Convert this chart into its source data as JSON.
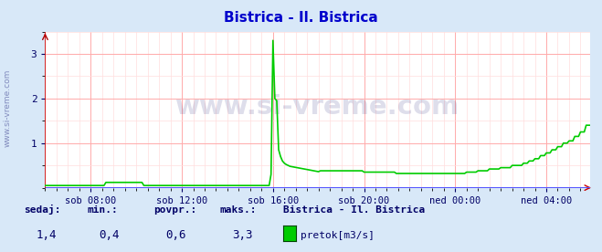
{
  "title": "Bistrica - Il. Bistrica",
  "title_color": "#0000cc",
  "bg_color": "#d8e8f8",
  "plot_bg_color": "#ffffff",
  "grid_color_major": "#ffaaaa",
  "grid_color_minor": "#ffdddd",
  "line_color": "#00cc00",
  "axis_color": "#cc0000",
  "xaxis_color": "#0000cc",
  "tick_label_color": "#000066",
  "watermark": "www.si-vreme.com",
  "watermark_color": "#000066",
  "watermark_alpha": 0.13,
  "xlabel_ticks": [
    "sob 08:00",
    "sob 12:00",
    "sob 16:00",
    "sob 20:00",
    "ned 00:00",
    "ned 04:00"
  ],
  "ylim": [
    0,
    3.5
  ],
  "yticks": [
    1,
    2,
    3
  ],
  "sedaj_label": "sedaj:",
  "min_label": "min.:",
  "povpr_label": "povpr.:",
  "maks_label": "maks.:",
  "sedaj_val": "1,4",
  "min_val": "0,4",
  "povpr_val": "0,6",
  "maks_val": "3,3",
  "legend_station": "Bistrica - Il. Bistrica",
  "legend_param": "pretok[m3/s]",
  "legend_color": "#00cc00",
  "label_color": "#000066",
  "side_watermark": "www.si-vreme.com"
}
